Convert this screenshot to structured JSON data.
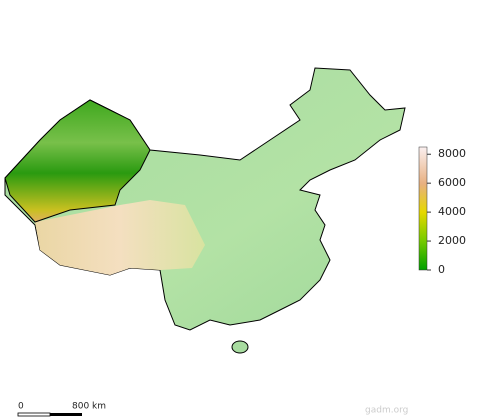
{
  "legend": {
    "ticks": [
      0,
      2000,
      4000,
      6000,
      8000
    ],
    "range": [
      0,
      8500
    ]
  },
  "scale_bar": {
    "labels": [
      "0",
      "800 km"
    ]
  },
  "credit": "gadm.org"
}
